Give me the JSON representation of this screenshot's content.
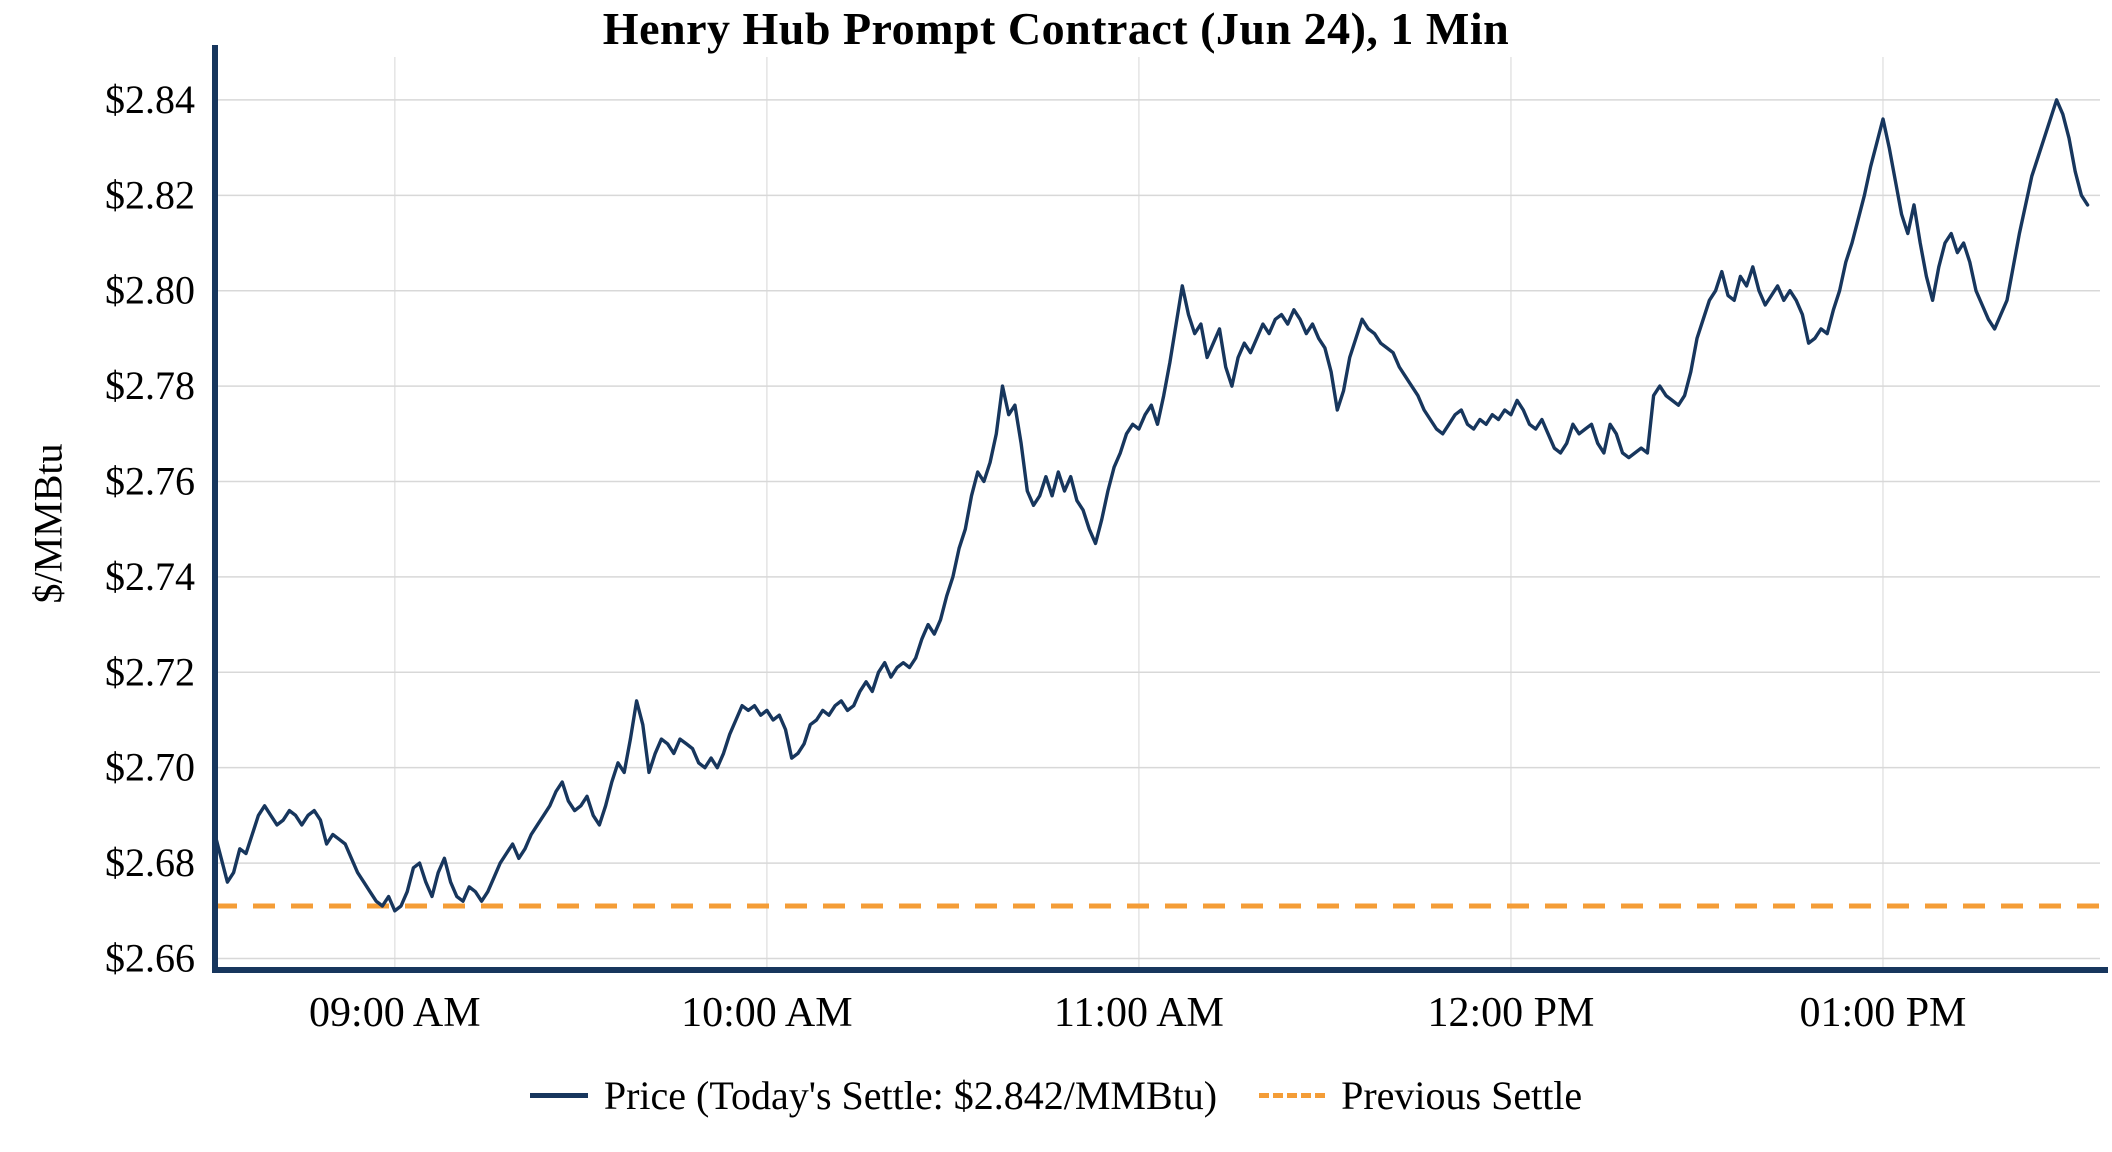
{
  "chart_data": {
    "type": "line",
    "title": "Henry Hub Prompt Contract (Jun 24), 1 Min",
    "ylabel": "$/MMBtu",
    "xlabel": "",
    "x_unit": "minutes_since_midnight",
    "xlim": [
      511,
      815
    ],
    "ylim": [
      2.658,
      2.849
    ],
    "grid": true,
    "legend_position": "bottom",
    "todays_settle": 2.842,
    "previous_settle": 2.671,
    "y_ticks": [
      2.66,
      2.68,
      2.7,
      2.72,
      2.74,
      2.76,
      2.78,
      2.8,
      2.82,
      2.84
    ],
    "x_ticks": [
      {
        "m": 540,
        "label": "09:00 AM"
      },
      {
        "m": 600,
        "label": "10:00 AM"
      },
      {
        "m": 660,
        "label": "11:00 AM"
      },
      {
        "m": 720,
        "label": "12:00 PM"
      },
      {
        "m": 780,
        "label": "01:00 PM"
      }
    ],
    "series": [
      {
        "name": "Price (Today's Settle: $2.842/MMBtu)",
        "type": "line",
        "color": "#17365D",
        "points": [
          [
            511,
            2.686
          ],
          [
            512,
            2.681
          ],
          [
            513,
            2.676
          ],
          [
            514,
            2.678
          ],
          [
            515,
            2.683
          ],
          [
            516,
            2.682
          ],
          [
            517,
            2.686
          ],
          [
            518,
            2.69
          ],
          [
            519,
            2.692
          ],
          [
            520,
            2.69
          ],
          [
            521,
            2.688
          ],
          [
            522,
            2.689
          ],
          [
            523,
            2.691
          ],
          [
            524,
            2.69
          ],
          [
            525,
            2.688
          ],
          [
            526,
            2.69
          ],
          [
            527,
            2.691
          ],
          [
            528,
            2.689
          ],
          [
            529,
            2.684
          ],
          [
            530,
            2.686
          ],
          [
            531,
            2.685
          ],
          [
            532,
            2.684
          ],
          [
            533,
            2.681
          ],
          [
            534,
            2.678
          ],
          [
            535,
            2.676
          ],
          [
            536,
            2.674
          ],
          [
            537,
            2.672
          ],
          [
            538,
            2.671
          ],
          [
            539,
            2.673
          ],
          [
            540,
            2.67
          ],
          [
            541,
            2.671
          ],
          [
            542,
            2.674
          ],
          [
            543,
            2.679
          ],
          [
            544,
            2.68
          ],
          [
            545,
            2.676
          ],
          [
            546,
            2.673
          ],
          [
            547,
            2.678
          ],
          [
            548,
            2.681
          ],
          [
            549,
            2.676
          ],
          [
            550,
            2.673
          ],
          [
            551,
            2.672
          ],
          [
            552,
            2.675
          ],
          [
            553,
            2.674
          ],
          [
            554,
            2.672
          ],
          [
            555,
            2.674
          ],
          [
            556,
            2.677
          ],
          [
            557,
            2.68
          ],
          [
            558,
            2.682
          ],
          [
            559,
            2.684
          ],
          [
            560,
            2.681
          ],
          [
            561,
            2.683
          ],
          [
            562,
            2.686
          ],
          [
            563,
            2.688
          ],
          [
            564,
            2.69
          ],
          [
            565,
            2.692
          ],
          [
            566,
            2.695
          ],
          [
            567,
            2.697
          ],
          [
            568,
            2.693
          ],
          [
            569,
            2.691
          ],
          [
            570,
            2.692
          ],
          [
            571,
            2.694
          ],
          [
            572,
            2.69
          ],
          [
            573,
            2.688
          ],
          [
            574,
            2.692
          ],
          [
            575,
            2.697
          ],
          [
            576,
            2.701
          ],
          [
            577,
            2.699
          ],
          [
            578,
            2.706
          ],
          [
            579,
            2.714
          ],
          [
            580,
            2.709
          ],
          [
            581,
            2.699
          ],
          [
            582,
            2.703
          ],
          [
            583,
            2.706
          ],
          [
            584,
            2.705
          ],
          [
            585,
            2.703
          ],
          [
            586,
            2.706
          ],
          [
            587,
            2.705
          ],
          [
            588,
            2.704
          ],
          [
            589,
            2.701
          ],
          [
            590,
            2.7
          ],
          [
            591,
            2.702
          ],
          [
            592,
            2.7
          ],
          [
            593,
            2.703
          ],
          [
            594,
            2.707
          ],
          [
            595,
            2.71
          ],
          [
            596,
            2.713
          ],
          [
            597,
            2.712
          ],
          [
            598,
            2.713
          ],
          [
            599,
            2.711
          ],
          [
            600,
            2.712
          ],
          [
            601,
            2.71
          ],
          [
            602,
            2.711
          ],
          [
            603,
            2.708
          ],
          [
            604,
            2.702
          ],
          [
            605,
            2.703
          ],
          [
            606,
            2.705
          ],
          [
            607,
            2.709
          ],
          [
            608,
            2.71
          ],
          [
            609,
            2.712
          ],
          [
            610,
            2.711
          ],
          [
            611,
            2.713
          ],
          [
            612,
            2.714
          ],
          [
            613,
            2.712
          ],
          [
            614,
            2.713
          ],
          [
            615,
            2.716
          ],
          [
            616,
            2.718
          ],
          [
            617,
            2.716
          ],
          [
            618,
            2.72
          ],
          [
            619,
            2.722
          ],
          [
            620,
            2.719
          ],
          [
            621,
            2.721
          ],
          [
            622,
            2.722
          ],
          [
            623,
            2.721
          ],
          [
            624,
            2.723
          ],
          [
            625,
            2.727
          ],
          [
            626,
            2.73
          ],
          [
            627,
            2.728
          ],
          [
            628,
            2.731
          ],
          [
            629,
            2.736
          ],
          [
            630,
            2.74
          ],
          [
            631,
            2.746
          ],
          [
            632,
            2.75
          ],
          [
            633,
            2.757
          ],
          [
            634,
            2.762
          ],
          [
            635,
            2.76
          ],
          [
            636,
            2.764
          ],
          [
            637,
            2.77
          ],
          [
            638,
            2.78
          ],
          [
            639,
            2.774
          ],
          [
            640,
            2.776
          ],
          [
            641,
            2.768
          ],
          [
            642,
            2.758
          ],
          [
            643,
            2.755
          ],
          [
            644,
            2.757
          ],
          [
            645,
            2.761
          ],
          [
            646,
            2.757
          ],
          [
            647,
            2.762
          ],
          [
            648,
            2.758
          ],
          [
            649,
            2.761
          ],
          [
            650,
            2.756
          ],
          [
            651,
            2.754
          ],
          [
            652,
            2.75
          ],
          [
            653,
            2.747
          ],
          [
            654,
            2.752
          ],
          [
            655,
            2.758
          ],
          [
            656,
            2.763
          ],
          [
            657,
            2.766
          ],
          [
            658,
            2.77
          ],
          [
            659,
            2.772
          ],
          [
            660,
            2.771
          ],
          [
            661,
            2.774
          ],
          [
            662,
            2.776
          ],
          [
            663,
            2.772
          ],
          [
            664,
            2.778
          ],
          [
            665,
            2.785
          ],
          [
            666,
            2.793
          ],
          [
            667,
            2.801
          ],
          [
            668,
            2.795
          ],
          [
            669,
            2.791
          ],
          [
            670,
            2.793
          ],
          [
            671,
            2.786
          ],
          [
            672,
            2.789
          ],
          [
            673,
            2.792
          ],
          [
            674,
            2.784
          ],
          [
            675,
            2.78
          ],
          [
            676,
            2.786
          ],
          [
            677,
            2.789
          ],
          [
            678,
            2.787
          ],
          [
            679,
            2.79
          ],
          [
            680,
            2.793
          ],
          [
            681,
            2.791
          ],
          [
            682,
            2.794
          ],
          [
            683,
            2.795
          ],
          [
            684,
            2.793
          ],
          [
            685,
            2.796
          ],
          [
            686,
            2.794
          ],
          [
            687,
            2.791
          ],
          [
            688,
            2.793
          ],
          [
            689,
            2.79
          ],
          [
            690,
            2.788
          ],
          [
            691,
            2.783
          ],
          [
            692,
            2.775
          ],
          [
            693,
            2.779
          ],
          [
            694,
            2.786
          ],
          [
            695,
            2.79
          ],
          [
            696,
            2.794
          ],
          [
            697,
            2.792
          ],
          [
            698,
            2.791
          ],
          [
            699,
            2.789
          ],
          [
            700,
            2.788
          ],
          [
            701,
            2.787
          ],
          [
            702,
            2.784
          ],
          [
            703,
            2.782
          ],
          [
            704,
            2.78
          ],
          [
            705,
            2.778
          ],
          [
            706,
            2.775
          ],
          [
            707,
            2.773
          ],
          [
            708,
            2.771
          ],
          [
            709,
            2.77
          ],
          [
            710,
            2.772
          ],
          [
            711,
            2.774
          ],
          [
            712,
            2.775
          ],
          [
            713,
            2.772
          ],
          [
            714,
            2.771
          ],
          [
            715,
            2.773
          ],
          [
            716,
            2.772
          ],
          [
            717,
            2.774
          ],
          [
            718,
            2.773
          ],
          [
            719,
            2.775
          ],
          [
            720,
            2.774
          ],
          [
            721,
            2.777
          ],
          [
            722,
            2.775
          ],
          [
            723,
            2.772
          ],
          [
            724,
            2.771
          ],
          [
            725,
            2.773
          ],
          [
            726,
            2.77
          ],
          [
            727,
            2.767
          ],
          [
            728,
            2.766
          ],
          [
            729,
            2.768
          ],
          [
            730,
            2.772
          ],
          [
            731,
            2.77
          ],
          [
            732,
            2.771
          ],
          [
            733,
            2.772
          ],
          [
            734,
            2.768
          ],
          [
            735,
            2.766
          ],
          [
            736,
            2.772
          ],
          [
            737,
            2.77
          ],
          [
            738,
            2.766
          ],
          [
            739,
            2.765
          ],
          [
            740,
            2.766
          ],
          [
            741,
            2.767
          ],
          [
            742,
            2.766
          ],
          [
            743,
            2.778
          ],
          [
            744,
            2.78
          ],
          [
            745,
            2.778
          ],
          [
            746,
            2.777
          ],
          [
            747,
            2.776
          ],
          [
            748,
            2.778
          ],
          [
            749,
            2.783
          ],
          [
            750,
            2.79
          ],
          [
            751,
            2.794
          ],
          [
            752,
            2.798
          ],
          [
            753,
            2.8
          ],
          [
            754,
            2.804
          ],
          [
            755,
            2.799
          ],
          [
            756,
            2.798
          ],
          [
            757,
            2.803
          ],
          [
            758,
            2.801
          ],
          [
            759,
            2.805
          ],
          [
            760,
            2.8
          ],
          [
            761,
            2.797
          ],
          [
            762,
            2.799
          ],
          [
            763,
            2.801
          ],
          [
            764,
            2.798
          ],
          [
            765,
            2.8
          ],
          [
            766,
            2.798
          ],
          [
            767,
            2.795
          ],
          [
            768,
            2.789
          ],
          [
            769,
            2.79
          ],
          [
            770,
            2.792
          ],
          [
            771,
            2.791
          ],
          [
            772,
            2.796
          ],
          [
            773,
            2.8
          ],
          [
            774,
            2.806
          ],
          [
            775,
            2.81
          ],
          [
            776,
            2.815
          ],
          [
            777,
            2.82
          ],
          [
            778,
            2.826
          ],
          [
            779,
            2.831
          ],
          [
            780,
            2.836
          ],
          [
            781,
            2.83
          ],
          [
            782,
            2.823
          ],
          [
            783,
            2.816
          ],
          [
            784,
            2.812
          ],
          [
            785,
            2.818
          ],
          [
            786,
            2.81
          ],
          [
            787,
            2.803
          ],
          [
            788,
            2.798
          ],
          [
            789,
            2.805
          ],
          [
            790,
            2.81
          ],
          [
            791,
            2.812
          ],
          [
            792,
            2.808
          ],
          [
            793,
            2.81
          ],
          [
            794,
            2.806
          ],
          [
            795,
            2.8
          ],
          [
            796,
            2.797
          ],
          [
            797,
            2.794
          ],
          [
            798,
            2.792
          ],
          [
            799,
            2.795
          ],
          [
            800,
            2.798
          ],
          [
            801,
            2.805
          ],
          [
            802,
            2.812
          ],
          [
            803,
            2.818
          ],
          [
            804,
            2.824
          ],
          [
            805,
            2.828
          ],
          [
            806,
            2.832
          ],
          [
            807,
            2.836
          ],
          [
            808,
            2.84
          ],
          [
            809,
            2.837
          ],
          [
            810,
            2.832
          ],
          [
            811,
            2.825
          ],
          [
            812,
            2.82
          ],
          [
            813,
            2.818
          ]
        ]
      },
      {
        "name": "Previous Settle",
        "type": "hline",
        "color": "#F49D37",
        "dash": true,
        "value": 2.671
      }
    ],
    "style": {
      "axis_color": "#17365D",
      "grid_color_h": "#d8d8d8",
      "grid_color_v": "#e4e4e4",
      "tick_label_color": "#000000"
    }
  }
}
